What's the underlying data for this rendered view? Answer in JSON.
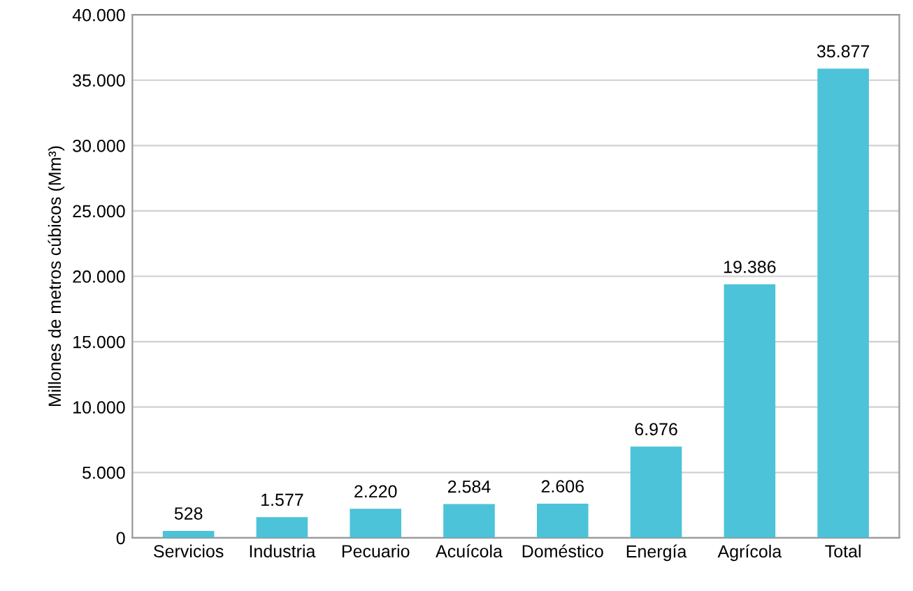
{
  "chart_data": {
    "type": "bar",
    "ylabel": "Millones de metros cúbicos (Mm³)",
    "categories": [
      "Servicios",
      "Industria",
      "Pecuario",
      "Acuícola",
      "Doméstico",
      "Energía",
      "Agrícola",
      "Total"
    ],
    "values": [
      528,
      1577,
      2220,
      2584,
      2606,
      6976,
      19386,
      35877
    ],
    "value_labels": [
      "528",
      "1.577",
      "2.220",
      "2.584",
      "2.606",
      "6.976",
      "19.386",
      "35.877"
    ],
    "color": "#4cc3d9",
    "ylim": [
      0,
      40000
    ],
    "yticks": [
      0,
      {
        "value": 5000,
        "label": "5.000"
      },
      {
        "value": 10000,
        "label": "10.000"
      },
      {
        "value": 15000,
        "label": "15.000"
      },
      {
        "value": 20000,
        "label": "20.000"
      },
      {
        "value": 25000,
        "label": "25.000"
      },
      {
        "value": 30000,
        "label": "30.000"
      },
      {
        "value": 35000,
        "label": "35.000"
      },
      {
        "value": 40000,
        "label": "40.000"
      }
    ],
    "grid": "y"
  }
}
